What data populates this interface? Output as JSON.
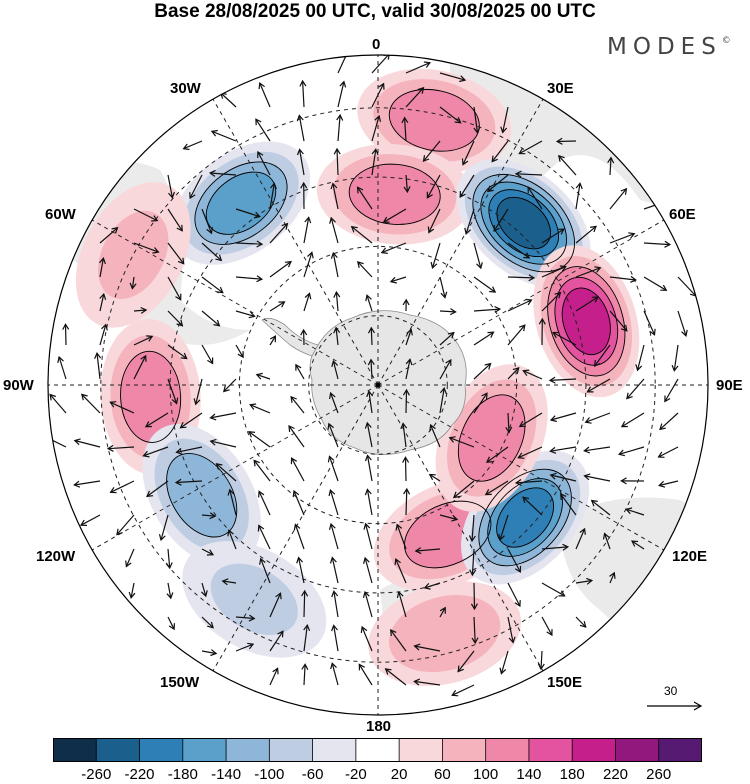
{
  "title": "Base 28/08/2025 00 UTC, valid 30/08/2025 00 UTC",
  "brand": "MODES",
  "brand_mark": "©",
  "longitude_labels": {
    "deg0": "0",
    "e30": "30E",
    "e60": "60E",
    "e90": "90E",
    "e120": "120E",
    "e150": "150E",
    "deg180": "180",
    "w150": "150W",
    "w120": "120W",
    "w90": "90W",
    "w60": "60W",
    "w30": "30W"
  },
  "reference_vector": {
    "value": "30"
  },
  "colorbar": {
    "colors": [
      "#0e2e4a",
      "#1b5f8c",
      "#2e7fb6",
      "#5b9fcb",
      "#8db6d9",
      "#bfcde3",
      "#e5e5f0",
      "#ffffff",
      "#f9d8db",
      "#f4b3bd",
      "#ef87a8",
      "#e4539f",
      "#c41f8a",
      "#93187d",
      "#571a73"
    ],
    "ticks": [
      "-260",
      "-220",
      "-180",
      "-140",
      "-100",
      "-60",
      "-20",
      "20",
      "60",
      "100",
      "140",
      "180",
      "220",
      "260"
    ]
  },
  "anomaly_centers": [
    {
      "lon": 12,
      "r": 0.82,
      "value": 130
    },
    {
      "lon": 5,
      "r": 0.58,
      "value": 120
    },
    {
      "lon": 42,
      "r": 0.66,
      "value": -240
    },
    {
      "lon": 73,
      "r": 0.66,
      "value": 190
    },
    {
      "lon": -37,
      "r": 0.69,
      "value": -150
    },
    {
      "lon": -62,
      "r": 0.84,
      "value": 60
    },
    {
      "lon": -93,
      "r": 0.69,
      "value": 120
    },
    {
      "lon": -122,
      "r": 0.63,
      "value": -110
    },
    {
      "lon": 155,
      "r": 0.5,
      "value": 110
    },
    {
      "lon": 132,
      "r": 0.6,
      "value": -200
    },
    {
      "lon": 115,
      "r": 0.38,
      "value": 110
    },
    {
      "lon": -150,
      "r": 0.75,
      "value": -60
    },
    {
      "lon": 165,
      "r": 0.78,
      "value": 70
    }
  ]
}
